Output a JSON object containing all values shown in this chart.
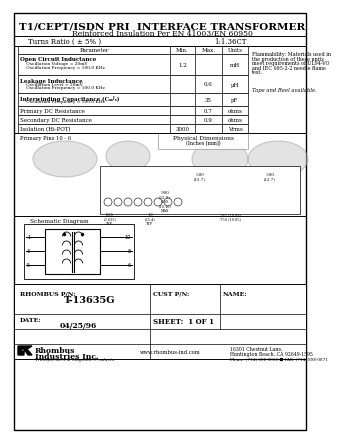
{
  "title": "T1/CEPT/ISDN PRI  INTERFACE TRANSFORMER",
  "subtitle": "Reinforced Insulation Per EN 41003/EN 60950",
  "turns_ratio_label": "Turns Ratio ( ± 5% )",
  "turns_ratio_value": "1:1.36CT",
  "table_headers": [
    "Parameter",
    "Min.",
    "Max.",
    "Units"
  ],
  "table_rows": [
    [
      "Open Circuit Inductance\n   Oscillation Voltage = 20mV\n   Oscillation Frequency = 100.0 KHz",
      "1.2",
      "",
      "mH"
    ],
    [
      "Leakage Inductance\n   Oscillation Level = 20mV\n   Oscillation Frequency = 100.0 KHz",
      "",
      "0.6",
      "μH"
    ],
    [
      "Interwinding Capacitance (Cₘᴶₛ)\n   Oscillation Frequency = 100.0 KHz",
      "",
      "35",
      "pF"
    ],
    [
      "Primary DC Resistance",
      "",
      "0.7",
      "ohms"
    ],
    [
      "Secondary DC Resistance",
      "",
      "0.9",
      "ohms"
    ],
    [
      "Isolation (Hi-POT)",
      "3000",
      "",
      "Vrms"
    ]
  ],
  "flammability_text": "Flammability: Materials used in\nthe production of these units\nmeet requirements of UL94-VO\nand IEC 695-2-2 needle flame\ntest.",
  "tape_reel_text": "Tape and Reel available.",
  "primary_pins": "Primary Pins 10 - 6",
  "schematic_label": "Schematic Diagram",
  "rhombus_pn_label": "RHOMBUS P/N:",
  "rhombus_pn_value": "T-13635G",
  "cust_pn_label": "CUST P/N:",
  "name_label": "NAME:",
  "date_label": "DATE:",
  "date_value": "04/25/96",
  "sheet_label": "SHEET:  1 OF 1",
  "company_name_line1": "Rhombus",
  "company_name_line2": "Industries Inc.",
  "company_sub": "Transformers & Magnetic Products",
  "address_line1": "16301 Chestnut Lane,",
  "address_line2": "Huntington Beach, CA 92649-1595",
  "phone": "Phone: (714) 898-0960 ■ FAX: (714) 898-0871",
  "website": "www.rhombus-ind.com",
  "phys_dim_label": "Physical Dimensions\n(Inches [mm])",
  "bg_color": "#ffffff"
}
